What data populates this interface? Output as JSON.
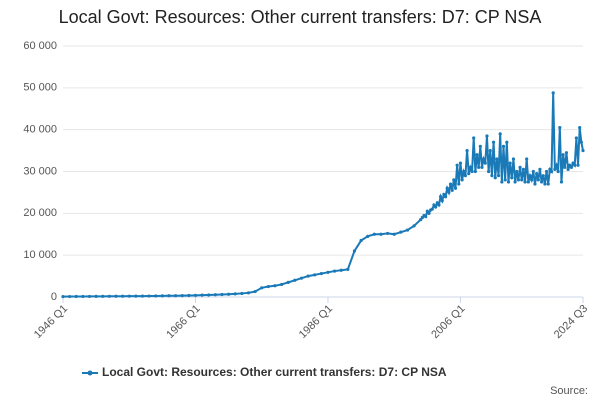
{
  "chart_data": {
    "type": "line",
    "title": "Local Govt: Resources: Other current transfers: D7: CP NSA",
    "source": "Source:",
    "grid": true,
    "legend": "bottom",
    "xlim": [
      1946,
      2024.5
    ],
    "xticks": [
      {
        "value": 1946,
        "label": "1946 Q1"
      },
      {
        "value": 1966,
        "label": "1966 Q1"
      },
      {
        "value": 1986,
        "label": "1986 Q1"
      },
      {
        "value": 2006,
        "label": "2006 Q1"
      },
      {
        "value": 2024.5,
        "label": "2024 Q3"
      }
    ],
    "ylim": [
      0,
      60000
    ],
    "yticks": [
      0,
      {
        "value": 10000,
        "label": "10 000"
      },
      {
        "value": 20000,
        "label": "20 000"
      },
      {
        "value": 30000,
        "label": "30 000"
      },
      {
        "value": 40000,
        "label": "40 000"
      },
      {
        "value": 50000,
        "label": "50 000"
      },
      {
        "value": 60000,
        "label": "60 000"
      }
    ],
    "x": [
      1946,
      1947,
      1948,
      1949,
      1950,
      1951,
      1952,
      1953,
      1954,
      1955,
      1956,
      1957,
      1958,
      1959,
      1960,
      1961,
      1962,
      1963,
      1964,
      1965,
      1966,
      1967,
      1968,
      1969,
      1970,
      1971,
      1972,
      1973,
      1974,
      1975,
      1976,
      1977,
      1978,
      1979,
      1980,
      1981,
      1982,
      1983,
      1984,
      1985,
      1986,
      1987,
      1988,
      1989,
      1990,
      1991,
      1992,
      1993,
      1994,
      1995,
      1996,
      1997,
      1998,
      1999,
      2000,
      2000.25,
      2000.5,
      2000.75,
      2001,
      2001.25,
      2001.5,
      2001.75,
      2002,
      2002.25,
      2002.5,
      2002.75,
      2003,
      2003.25,
      2003.5,
      2003.75,
      2004,
      2004.25,
      2004.5,
      2004.75,
      2005,
      2005.25,
      2005.5,
      2005.75,
      2006,
      2006.25,
      2006.5,
      2006.75,
      2007,
      2007.25,
      2007.5,
      2007.75,
      2008,
      2008.25,
      2008.5,
      2008.75,
      2009,
      2009.25,
      2009.5,
      2009.75,
      2010,
      2010.25,
      2010.5,
      2010.75,
      2011,
      2011.25,
      2011.5,
      2011.75,
      2012,
      2012.25,
      2012.5,
      2012.75,
      2013,
      2013.25,
      2013.5,
      2013.75,
      2014,
      2014.25,
      2014.5,
      2014.75,
      2015,
      2015.25,
      2015.5,
      2015.75,
      2016,
      2016.25,
      2016.5,
      2016.75,
      2017,
      2017.25,
      2017.5,
      2017.75,
      2018,
      2018.25,
      2018.5,
      2018.75,
      2019,
      2019.25,
      2019.5,
      2019.75,
      2020,
      2020.25,
      2020.5,
      2020.75,
      2021,
      2021.25,
      2021.5,
      2021.75,
      2022,
      2022.25,
      2022.5,
      2022.75,
      2023,
      2023.25,
      2023.5,
      2023.75,
      2024,
      2024.25,
      2024.5
    ],
    "series": [
      {
        "name": "Local Govt: Resources: Other current transfers: D7: CP NSA",
        "color": "#1a7ab8",
        "values": [
          100,
          110,
          120,
          130,
          140,
          150,
          160,
          170,
          180,
          190,
          200,
          210,
          220,
          230,
          250,
          270,
          290,
          310,
          330,
          360,
          400,
          440,
          480,
          530,
          590,
          660,
          740,
          850,
          1000,
          1300,
          2200,
          2500,
          2700,
          3000,
          3500,
          4000,
          4500,
          5000,
          5300,
          5600,
          5900,
          6200,
          6400,
          6600,
          11000,
          13500,
          14500,
          15000,
          15000,
          15200,
          15000,
          15500,
          16000,
          17000,
          18500,
          19000,
          19500,
          19200,
          20500,
          20000,
          20800,
          21000,
          22000,
          21500,
          22500,
          22000,
          24000,
          23000,
          24500,
          24000,
          26000,
          25000,
          27000,
          25500,
          28000,
          26000,
          31500,
          27000,
          32000,
          28000,
          30000,
          29000,
          35000,
          29500,
          31000,
          30000,
          38000,
          30000,
          34000,
          31000,
          36000,
          31000,
          33000,
          32000,
          38500,
          30000,
          35000,
          29000,
          37000,
          28500,
          33000,
          29000,
          39000,
          27500,
          36000,
          28000,
          37000,
          27500,
          32000,
          28500,
          33000,
          27500,
          30000,
          28000,
          31000,
          28000,
          30500,
          27500,
          33000,
          27500,
          29000,
          28000,
          30000,
          27000,
          29500,
          28000,
          30500,
          27500,
          29000,
          27000,
          30000,
          27000,
          30500,
          30000,
          48800,
          30500,
          31500,
          30000,
          40500,
          27500,
          34000,
          31000,
          34500,
          30500,
          31500,
          31000,
          32000,
          31500,
          38000,
          31500,
          40500,
          37000,
          35000
        ]
      }
    ]
  }
}
